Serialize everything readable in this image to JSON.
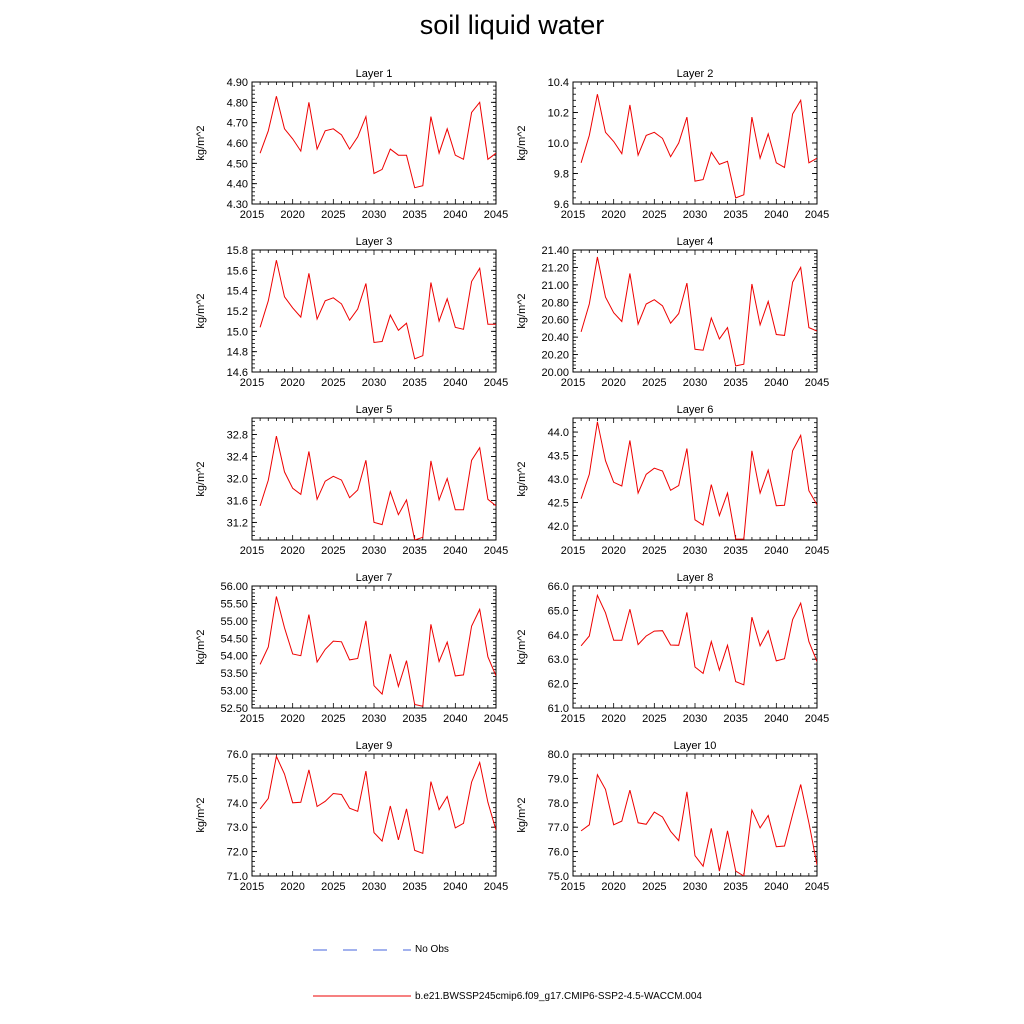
{
  "title": "soil liquid water",
  "colors": {
    "series": "#ee0000",
    "no_obs": "#4466dd",
    "axis": "#000000"
  },
  "legend": {
    "no_obs_label": "No Obs",
    "series_label": "b.e21.BWSSP245cmip6.f09_g17.CMIP6-SSP2-4.5-WACCM.004"
  },
  "chart_data": [
    {
      "type": "line",
      "title": "Layer 1",
      "ylabel": "kg/m^2",
      "xlim": [
        2015,
        2045
      ],
      "xticks": [
        2015,
        2020,
        2025,
        2030,
        2035,
        2040,
        2045
      ],
      "ylim": [
        4.3,
        4.9
      ],
      "yticks": [
        "4.30",
        "4.40",
        "4.50",
        "4.60",
        "4.70",
        "4.80",
        "4.90"
      ],
      "x": [
        2016,
        2017,
        2018,
        2019,
        2020,
        2021,
        2022,
        2023,
        2024,
        2025,
        2026,
        2027,
        2028,
        2029,
        2030,
        2031,
        2032,
        2033,
        2034,
        2035,
        2036,
        2037,
        2038,
        2039,
        2040,
        2041,
        2042,
        2043,
        2044,
        2045
      ],
      "values": [
        4.55,
        4.66,
        4.83,
        4.67,
        4.62,
        4.56,
        4.8,
        4.57,
        4.66,
        4.67,
        4.64,
        4.57,
        4.63,
        4.73,
        4.45,
        4.47,
        4.57,
        4.54,
        4.54,
        4.38,
        4.39,
        4.73,
        4.55,
        4.67,
        4.54,
        4.52,
        4.75,
        4.8,
        4.52,
        4.55
      ]
    },
    {
      "type": "line",
      "title": "Layer 2",
      "ylabel": "kg/m^2",
      "xlim": [
        2015,
        2045
      ],
      "xticks": [
        2015,
        2020,
        2025,
        2030,
        2035,
        2040,
        2045
      ],
      "ylim": [
        9.6,
        10.4
      ],
      "yticks": [
        "9.6",
        "9.8",
        "10.0",
        "10.2",
        "10.4"
      ],
      "x": [
        2016,
        2017,
        2018,
        2019,
        2020,
        2021,
        2022,
        2023,
        2024,
        2025,
        2026,
        2027,
        2028,
        2029,
        2030,
        2031,
        2032,
        2033,
        2034,
        2035,
        2036,
        2037,
        2038,
        2039,
        2040,
        2041,
        2042,
        2043,
        2044,
        2045
      ],
      "values": [
        9.87,
        10.05,
        10.32,
        10.07,
        10.01,
        9.93,
        10.25,
        9.92,
        10.05,
        10.07,
        10.03,
        9.91,
        10.0,
        10.17,
        9.75,
        9.76,
        9.94,
        9.86,
        9.88,
        9.64,
        9.66,
        10.17,
        9.9,
        10.06,
        9.87,
        9.84,
        10.19,
        10.28,
        9.87,
        9.9
      ]
    },
    {
      "type": "line",
      "title": "Layer 3",
      "ylabel": "kg/m^2",
      "xlim": [
        2015,
        2045
      ],
      "xticks": [
        2015,
        2020,
        2025,
        2030,
        2035,
        2040,
        2045
      ],
      "ylim": [
        14.6,
        15.8
      ],
      "yticks": [
        "14.6",
        "14.8",
        "15.0",
        "15.2",
        "15.4",
        "15.6",
        "15.8"
      ],
      "x": [
        2016,
        2017,
        2018,
        2019,
        2020,
        2021,
        2022,
        2023,
        2024,
        2025,
        2026,
        2027,
        2028,
        2029,
        2030,
        2031,
        2032,
        2033,
        2034,
        2035,
        2036,
        2037,
        2038,
        2039,
        2040,
        2041,
        2042,
        2043,
        2044,
        2045
      ],
      "values": [
        15.04,
        15.3,
        15.7,
        15.34,
        15.23,
        15.14,
        15.57,
        15.12,
        15.3,
        15.33,
        15.27,
        15.11,
        15.22,
        15.47,
        14.89,
        14.9,
        15.16,
        15.01,
        15.08,
        14.73,
        14.76,
        15.48,
        15.1,
        15.32,
        15.04,
        15.02,
        15.49,
        15.62,
        15.07,
        15.07
      ]
    },
    {
      "type": "line",
      "title": "Layer 4",
      "ylabel": "kg/m^2",
      "xlim": [
        2015,
        2045
      ],
      "xticks": [
        2015,
        2020,
        2025,
        2030,
        2035,
        2040,
        2045
      ],
      "ylim": [
        20.0,
        21.4
      ],
      "yticks": [
        "20.00",
        "20.20",
        "20.40",
        "20.60",
        "20.80",
        "21.00",
        "21.20",
        "21.40"
      ],
      "x": [
        2016,
        2017,
        2018,
        2019,
        2020,
        2021,
        2022,
        2023,
        2024,
        2025,
        2026,
        2027,
        2028,
        2029,
        2030,
        2031,
        2032,
        2033,
        2034,
        2035,
        2036,
        2037,
        2038,
        2039,
        2040,
        2041,
        2042,
        2043,
        2044,
        2045
      ],
      "values": [
        20.46,
        20.78,
        21.32,
        20.86,
        20.68,
        20.58,
        21.13,
        20.55,
        20.78,
        20.83,
        20.76,
        20.56,
        20.67,
        21.02,
        20.26,
        20.25,
        20.62,
        20.38,
        20.51,
        20.07,
        20.09,
        21.01,
        20.54,
        20.81,
        20.43,
        20.42,
        21.03,
        21.2,
        20.51,
        20.47
      ]
    },
    {
      "type": "line",
      "title": "Layer 5",
      "ylabel": "kg/m^2",
      "xlim": [
        2015,
        2045
      ],
      "xticks": [
        2015,
        2020,
        2025,
        2030,
        2035,
        2040,
        2045
      ],
      "ylim": [
        30.88,
        33.1
      ],
      "yticks": [
        "31.2",
        "31.6",
        "32.0",
        "32.4",
        "32.8"
      ],
      "x": [
        2016,
        2017,
        2018,
        2019,
        2020,
        2021,
        2022,
        2023,
        2024,
        2025,
        2026,
        2027,
        2028,
        2029,
        2030,
        2031,
        2032,
        2033,
        2034,
        2035,
        2036,
        2037,
        2038,
        2039,
        2040,
        2041,
        2042,
        2043,
        2044,
        2045
      ],
      "values": [
        31.5,
        31.97,
        32.77,
        32.12,
        31.82,
        31.71,
        32.49,
        31.62,
        31.95,
        32.04,
        31.97,
        31.65,
        31.79,
        32.33,
        31.2,
        31.16,
        31.76,
        31.34,
        31.61,
        30.88,
        30.93,
        32.32,
        31.61,
        32.0,
        31.43,
        31.43,
        32.33,
        32.56,
        31.62,
        31.5
      ]
    },
    {
      "type": "line",
      "title": "Layer 6",
      "ylabel": "kg/m^2",
      "xlim": [
        2015,
        2045
      ],
      "xticks": [
        2015,
        2020,
        2025,
        2030,
        2035,
        2040,
        2045
      ],
      "ylim": [
        41.7,
        44.3
      ],
      "yticks": [
        "42.0",
        "42.5",
        "43.0",
        "43.5",
        "44.0"
      ],
      "x": [
        2016,
        2017,
        2018,
        2019,
        2020,
        2021,
        2022,
        2023,
        2024,
        2025,
        2026,
        2027,
        2028,
        2029,
        2030,
        2031,
        2032,
        2033,
        2034,
        2035,
        2036,
        2037,
        2038,
        2039,
        2040,
        2041,
        2042,
        2043,
        2044,
        2045
      ],
      "values": [
        42.58,
        43.1,
        44.22,
        43.39,
        42.93,
        42.85,
        43.82,
        42.7,
        43.1,
        43.23,
        43.17,
        42.76,
        42.86,
        43.65,
        42.13,
        42.02,
        42.88,
        42.22,
        42.7,
        41.72,
        41.72,
        43.6,
        42.7,
        43.19,
        42.43,
        42.44,
        43.6,
        43.93,
        42.75,
        42.45
      ]
    },
    {
      "type": "line",
      "title": "Layer 7",
      "ylabel": "kg/m^2",
      "xlim": [
        2015,
        2045
      ],
      "xticks": [
        2015,
        2020,
        2025,
        2030,
        2035,
        2040,
        2045
      ],
      "ylim": [
        52.5,
        56.0
      ],
      "yticks": [
        "52.50",
        "53.00",
        "53.50",
        "54.00",
        "54.50",
        "55.00",
        "55.50",
        "56.00"
      ],
      "x": [
        2016,
        2017,
        2018,
        2019,
        2020,
        2021,
        2022,
        2023,
        2024,
        2025,
        2026,
        2027,
        2028,
        2029,
        2030,
        2031,
        2032,
        2033,
        2034,
        2035,
        2036,
        2037,
        2038,
        2039,
        2040,
        2041,
        2042,
        2043,
        2044,
        2045
      ],
      "values": [
        53.75,
        54.25,
        55.7,
        54.8,
        54.05,
        54.0,
        55.18,
        53.82,
        54.18,
        54.42,
        54.4,
        53.88,
        53.92,
        55.0,
        53.14,
        52.9,
        54.05,
        53.12,
        53.86,
        52.6,
        52.55,
        54.9,
        53.83,
        54.39,
        53.42,
        53.45,
        54.85,
        55.33,
        53.97,
        53.42
      ]
    },
    {
      "type": "line",
      "title": "Layer 8",
      "ylabel": "kg/m^2",
      "xlim": [
        2015,
        2045
      ],
      "xticks": [
        2015,
        2020,
        2025,
        2030,
        2035,
        2040,
        2045
      ],
      "ylim": [
        61.0,
        66.0
      ],
      "yticks": [
        "61.0",
        "62.0",
        "63.0",
        "64.0",
        "65.0",
        "66.0"
      ],
      "x": [
        2016,
        2017,
        2018,
        2019,
        2020,
        2021,
        2022,
        2023,
        2024,
        2025,
        2026,
        2027,
        2028,
        2029,
        2030,
        2031,
        2032,
        2033,
        2034,
        2035,
        2036,
        2037,
        2038,
        2039,
        2040,
        2041,
        2042,
        2043,
        2044,
        2045
      ],
      "values": [
        63.55,
        63.95,
        65.62,
        64.9,
        63.78,
        63.78,
        65.05,
        63.6,
        63.95,
        64.15,
        64.17,
        63.58,
        63.57,
        64.92,
        62.68,
        62.42,
        63.72,
        62.55,
        63.57,
        62.08,
        61.95,
        64.72,
        63.55,
        64.17,
        62.93,
        63.02,
        64.62,
        65.3,
        63.72,
        62.9
      ]
    },
    {
      "type": "line",
      "title": "Layer 9",
      "ylabel": "kg/m^2",
      "xlim": [
        2015,
        2045
      ],
      "xticks": [
        2015,
        2020,
        2025,
        2030,
        2035,
        2040,
        2045
      ],
      "ylim": [
        71.0,
        76.0
      ],
      "yticks": [
        "71.0",
        "72.0",
        "73.0",
        "74.0",
        "75.0",
        "76.0"
      ],
      "x": [
        2016,
        2017,
        2018,
        2019,
        2020,
        2021,
        2022,
        2023,
        2024,
        2025,
        2026,
        2027,
        2028,
        2029,
        2030,
        2031,
        2032,
        2033,
        2034,
        2035,
        2036,
        2037,
        2038,
        2039,
        2040,
        2041,
        2042,
        2043,
        2044,
        2045
      ],
      "values": [
        73.75,
        74.18,
        75.9,
        75.18,
        74.0,
        74.02,
        75.35,
        73.85,
        74.06,
        74.38,
        74.34,
        73.78,
        73.65,
        75.3,
        72.78,
        72.43,
        73.87,
        72.48,
        73.75,
        72.05,
        71.93,
        74.87,
        73.72,
        74.26,
        72.97,
        73.16,
        74.85,
        75.65,
        74.02,
        72.88
      ]
    },
    {
      "type": "line",
      "title": "Layer 10",
      "ylabel": "kg/m^2",
      "xlim": [
        2015,
        2045
      ],
      "xticks": [
        2015,
        2020,
        2025,
        2030,
        2035,
        2040,
        2045
      ],
      "ylim": [
        75.0,
        80.0
      ],
      "yticks": [
        "75.0",
        "76.0",
        "77.0",
        "78.0",
        "79.0",
        "80.0"
      ],
      "x": [
        2016,
        2017,
        2018,
        2019,
        2020,
        2021,
        2022,
        2023,
        2024,
        2025,
        2026,
        2027,
        2028,
        2029,
        2030,
        2031,
        2032,
        2033,
        2034,
        2035,
        2036,
        2037,
        2038,
        2039,
        2040,
        2041,
        2042,
        2043,
        2044,
        2045
      ],
      "values": [
        76.85,
        77.1,
        79.15,
        78.55,
        77.1,
        77.25,
        78.52,
        77.18,
        77.12,
        77.62,
        77.42,
        76.83,
        76.45,
        78.45,
        75.83,
        75.4,
        76.95,
        75.2,
        76.85,
        75.2,
        75.0,
        77.7,
        76.97,
        77.48,
        76.2,
        76.23,
        77.52,
        78.75,
        77.18,
        75.45
      ]
    }
  ]
}
